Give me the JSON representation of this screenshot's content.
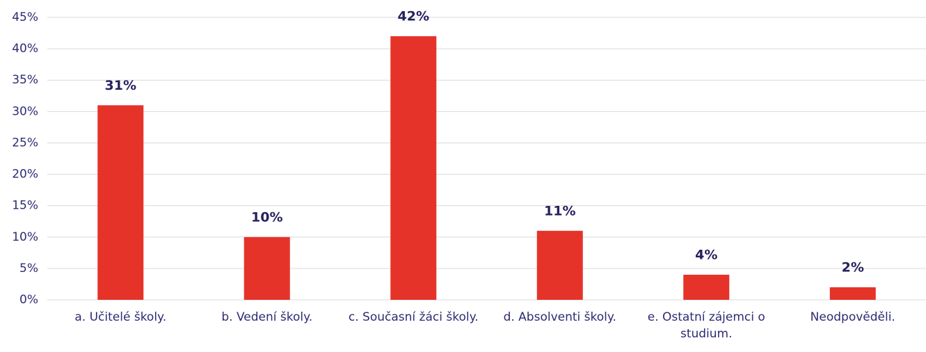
{
  "chart_data": {
    "type": "bar",
    "categories": [
      "a. Učitelé školy.",
      "b. Vedení školy.",
      "c. Současní žáci školy.",
      "d. Absolventi školy.",
      "e. Ostatní zájemci o studium.",
      "Neodpověděli."
    ],
    "values": [
      31,
      10,
      42,
      11,
      4,
      2
    ],
    "value_labels": [
      "31%",
      "10%",
      "42%",
      "11%",
      "4%",
      "2%"
    ],
    "color": "#e5332a",
    "ylim": [
      0,
      45
    ],
    "yticks": [
      {
        "value": 0,
        "label": "0%"
      },
      {
        "value": 5,
        "label": "5%"
      },
      {
        "value": 10,
        "label": "10%"
      },
      {
        "value": 15,
        "label": "15%"
      },
      {
        "value": 20,
        "label": "20%"
      },
      {
        "value": 25,
        "label": "25%"
      },
      {
        "value": 30,
        "label": "30%"
      },
      {
        "value": 35,
        "label": "35%"
      },
      {
        "value": 40,
        "label": "40%"
      },
      {
        "value": 45,
        "label": "45%"
      }
    ],
    "grid": true
  }
}
